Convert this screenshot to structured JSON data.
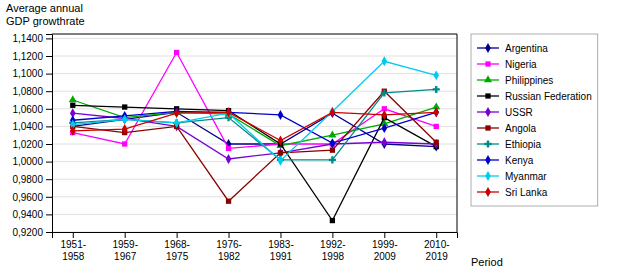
{
  "chart_data": {
    "type": "line",
    "ylabel": "Average annual\nGDP growthrate",
    "xlabel": "Period",
    "categories": [
      "1951-\n1958",
      "1959-\n1967",
      "1968-\n1975",
      "1976-\n1982",
      "1983-\n1991",
      "1992-\n1998",
      "1999-\n2009",
      "2010-\n2019"
    ],
    "series": [
      {
        "name": "Argentina",
        "color": "#00008B",
        "marker": "diamond",
        "values": [
          1.04,
          1.048,
          1.056,
          1.02,
          1.02,
          1.055,
          1.02,
          1.017
        ]
      },
      {
        "name": "Nigeria",
        "color": "#FF00FF",
        "marker": "square",
        "values": [
          1.033,
          1.02,
          1.124,
          1.015,
          1.02,
          1.02,
          1.06,
          1.04
        ]
      },
      {
        "name": "Philippines",
        "color": "#00AA00",
        "marker": "triangle",
        "values": [
          1.07,
          1.05,
          1.056,
          1.054,
          1.018,
          1.03,
          1.043,
          1.062
        ]
      },
      {
        "name": "Russian Federation",
        "color": "#000000",
        "marker": "square",
        "values": [
          1.064,
          1.062,
          1.06,
          1.058,
          1.02,
          0.933,
          1.05,
          1.017
        ]
      },
      {
        "name": "USSR",
        "color": "#7B00D4",
        "marker": "diamond",
        "values": [
          1.055,
          1.049,
          1.04,
          1.003,
          1.01,
          1.02,
          1.022,
          1.02
        ]
      },
      {
        "name": "Angola",
        "color": "#8B0000",
        "marker": "square",
        "values": [
          1.04,
          1.033,
          1.04,
          0.955,
          1.01,
          1.013,
          1.08,
          1.022
        ]
      },
      {
        "name": "Ethiopia",
        "color": "#008B8B",
        "marker": "plus",
        "values": [
          1.044,
          1.048,
          1.044,
          1.05,
          1.002,
          1.002,
          1.078,
          1.082
        ]
      },
      {
        "name": "Kenya",
        "color": "#0000CD",
        "marker": "diamond",
        "values": [
          1.047,
          1.052,
          1.057,
          1.056,
          1.053,
          1.021,
          1.038,
          1.056
        ]
      },
      {
        "name": "Myanmar",
        "color": "#00CCEE",
        "marker": "diamond",
        "values": [
          1.042,
          1.048,
          1.044,
          1.055,
          1.001,
          1.057,
          1.114,
          1.098
        ]
      },
      {
        "name": "Sri Lanka",
        "color": "#CC0000",
        "marker": "diamond",
        "values": [
          1.035,
          1.037,
          1.055,
          1.056,
          1.024,
          1.056,
          1.053,
          1.056
        ]
      }
    ],
    "ylim": [
      0.92,
      1.145
    ],
    "yticks": [
      {
        "value": 0.92,
        "label": "0,9200"
      },
      {
        "value": 0.94,
        "label": "0,9400"
      },
      {
        "value": 0.96,
        "label": "0,9600"
      },
      {
        "value": 0.98,
        "label": "0,9800"
      },
      {
        "value": 1.0,
        "label": "1,0000"
      },
      {
        "value": 1.02,
        "label": "1,0200"
      },
      {
        "value": 1.04,
        "label": "1,0400"
      },
      {
        "value": 1.06,
        "label": "1,0600"
      },
      {
        "value": 1.08,
        "label": "1,0800"
      },
      {
        "value": 1.1,
        "label": "1,1000"
      },
      {
        "value": 1.12,
        "label": "1,1200"
      },
      {
        "value": 1.14,
        "label": "1,1400"
      }
    ],
    "grid": "y",
    "legend": "right"
  }
}
